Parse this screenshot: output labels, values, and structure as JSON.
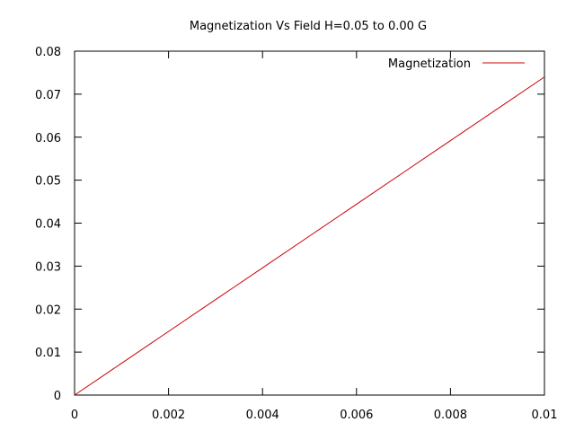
{
  "chart_data": {
    "type": "line",
    "title": "Magnetization Vs Field H=0.05 to 0.00 G",
    "xlabel": "",
    "ylabel": "",
    "xlim": [
      0,
      0.01
    ],
    "ylim": [
      0,
      0.08
    ],
    "xticks": [
      "0",
      "0.002",
      "0.004",
      "0.006",
      "0.008",
      "0.01"
    ],
    "yticks": [
      "0",
      "0.01",
      "0.02",
      "0.03",
      "0.04",
      "0.05",
      "0.06",
      "0.07",
      "0.08"
    ],
    "grid": false,
    "legend_position": "top-right",
    "series": [
      {
        "name": "Magnetization",
        "color": "#cc0000",
        "x": [
          0,
          0.001,
          0.002,
          0.003,
          0.004,
          0.005,
          0.006,
          0.007,
          0.008,
          0.009,
          0.01
        ],
        "y": [
          0,
          0.0074,
          0.0148,
          0.0222,
          0.0296,
          0.037,
          0.0444,
          0.0518,
          0.0592,
          0.0666,
          0.074
        ]
      }
    ]
  }
}
